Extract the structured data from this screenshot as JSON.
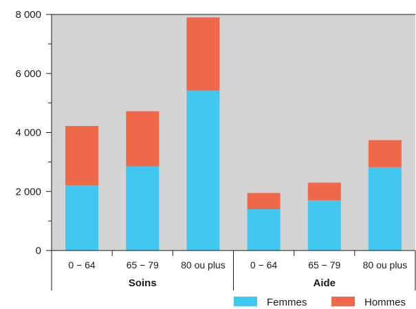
{
  "chart_data": {
    "type": "bar",
    "stacked": true,
    "groups": [
      {
        "label": "Soins",
        "categories": [
          "0 − 64",
          "65 − 79",
          "80 ou plus"
        ]
      },
      {
        "label": "Aide",
        "categories": [
          "0 − 64",
          "65 − 79",
          "80 ou plus"
        ]
      }
    ],
    "categories": [
      "0 − 64",
      "65 − 79",
      "80 ou plus",
      "0 − 64",
      "65 − 79",
      "80 ou plus"
    ],
    "series": [
      {
        "name": "Femmes",
        "color": "#40c8f0",
        "values": [
          2200,
          2850,
          5420,
          1400,
          1700,
          2820
        ]
      },
      {
        "name": "Hommes",
        "color": "#f0684a",
        "values": [
          2020,
          1870,
          2480,
          550,
          600,
          920
        ]
      }
    ],
    "ylim": [
      0,
      8000
    ],
    "yticks": [
      0,
      2000,
      4000,
      6000,
      8000
    ],
    "ytick_labels": [
      "0",
      "2 000",
      "4 000",
      "6 000",
      "8 000"
    ],
    "title": "",
    "xlabel": "",
    "ylabel": "",
    "grid": false,
    "legend": "bottom-right",
    "plot_background": "#d4d4d4"
  }
}
